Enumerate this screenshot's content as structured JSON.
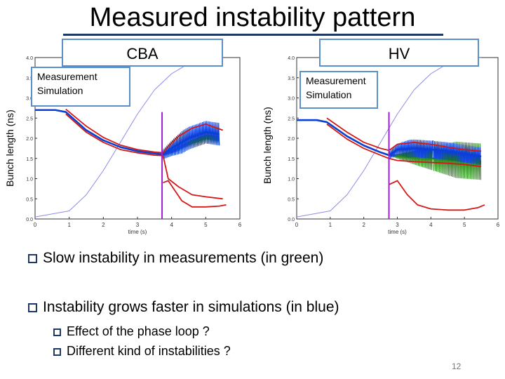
{
  "slide": {
    "title": "Measured instability pattern",
    "page_number": "12",
    "bullets": [
      "Slow instability in measurements (in green)",
      "Instability grows faster in simulations (in blue)"
    ],
    "sub_bullets": [
      "Effect of the phase loop ?",
      "Different kind of instabilities ?"
    ]
  },
  "colors": {
    "measurement": "#2e8b1e",
    "simulation": "#0b3fd8",
    "envelope": "#d41818",
    "ramp": "#8c8ce6",
    "marker": "#a020d0",
    "box_border": "#5b8fcb"
  },
  "chart_data": [
    {
      "type": "line",
      "panel_label": "CBA",
      "ylabel": "Bunch length (ns)",
      "xlabel": "time (s)",
      "xlim": [
        0,
        6
      ],
      "ylim": [
        0,
        4.0
      ],
      "x_ticks": [
        "0",
        "1",
        "2",
        "3",
        "4",
        "5",
        "6"
      ],
      "y_ticks": [
        "0.0",
        "0.5",
        "1.0",
        "1.5",
        "2.0",
        "2.5",
        "3.0",
        "3.5",
        "4.0"
      ],
      "legend": [
        "Measurement",
        "Simulation"
      ],
      "marker_x": 3.72,
      "series": [
        {
          "name": "Measurement",
          "x": [
            0.0,
            0.6,
            0.9,
            1.5,
            2.0,
            2.5,
            3.0,
            3.5,
            3.75,
            4.0,
            4.5,
            5.0,
            5.4
          ],
          "y": [
            2.7,
            2.7,
            2.65,
            2.2,
            1.95,
            1.78,
            1.68,
            1.62,
            1.6,
            1.65,
            1.85,
            2.0,
            1.95
          ]
        },
        {
          "name": "Simulation",
          "x": [
            0.0,
            0.6,
            0.9,
            1.5,
            2.0,
            2.5,
            3.0,
            3.5,
            3.75,
            4.0,
            4.5,
            5.0,
            5.4
          ],
          "y": [
            2.7,
            2.7,
            2.65,
            2.2,
            1.95,
            1.78,
            1.68,
            1.62,
            1.6,
            1.75,
            2.0,
            2.15,
            2.1
          ]
        },
        {
          "name": "",
          "x": [
            0.9,
            1.5,
            2.0,
            2.5,
            3.0,
            3.5,
            3.75,
            3.9,
            4.2,
            4.6,
            5.0,
            5.5
          ],
          "y": [
            2.72,
            2.3,
            2.02,
            1.83,
            1.72,
            1.66,
            1.64,
            1.8,
            2.05,
            2.25,
            2.35,
            2.2
          ]
        },
        {
          "name": "",
          "x": [
            0.9,
            1.5,
            2.0,
            2.5,
            3.0,
            3.5,
            3.75,
            3.9,
            4.2,
            4.6,
            5.0,
            5.5
          ],
          "y": [
            2.6,
            2.15,
            1.9,
            1.72,
            1.64,
            1.58,
            1.57,
            1.0,
            0.8,
            0.6,
            0.55,
            0.5
          ]
        },
        {
          "name": "",
          "x": [
            3.75,
            3.9,
            4.1,
            4.3,
            4.6,
            5.0,
            5.4,
            5.6
          ],
          "y": [
            0.9,
            0.95,
            0.7,
            0.45,
            0.3,
            0.3,
            0.32,
            0.35
          ]
        },
        {
          "name": "",
          "x": [
            0.0,
            1.0,
            1.5,
            2.0,
            2.5,
            3.0,
            3.5,
            4.0,
            4.5,
            5.0,
            5.5
          ],
          "y": [
            0.05,
            0.2,
            0.6,
            1.2,
            1.9,
            2.6,
            3.2,
            3.6,
            3.85,
            3.95,
            4.0
          ]
        }
      ]
    },
    {
      "type": "line",
      "panel_label": "HV",
      "ylabel": "Bunch length (ns)",
      "xlabel": "time (s)",
      "xlim": [
        0,
        6
      ],
      "ylim": [
        0,
        4.0
      ],
      "x_ticks": [
        "0",
        "1",
        "2",
        "3",
        "4",
        "5",
        "6"
      ],
      "y_ticks": [
        "0.0",
        "0.5",
        "1.0",
        "1.5",
        "2.0",
        "2.5",
        "3.0",
        "3.5",
        "4.0"
      ],
      "legend": [
        "Measurement",
        "Simulation"
      ],
      "marker_x": 2.75,
      "series": [
        {
          "name": "Measurement",
          "x": [
            0.0,
            0.6,
            0.9,
            1.5,
            2.0,
            2.5,
            2.75,
            3.0,
            3.5,
            4.0,
            4.5,
            5.0,
            5.5
          ],
          "y": [
            2.45,
            2.45,
            2.4,
            2.05,
            1.82,
            1.65,
            1.58,
            1.55,
            1.52,
            1.5,
            1.48,
            1.45,
            1.42
          ]
        },
        {
          "name": "Simulation",
          "x": [
            0.0,
            0.6,
            0.9,
            1.5,
            2.0,
            2.5,
            2.75,
            3.0,
            3.5,
            4.0,
            4.5,
            5.0,
            5.5
          ],
          "y": [
            2.45,
            2.45,
            2.4,
            2.05,
            1.82,
            1.65,
            1.58,
            1.72,
            1.75,
            1.72,
            1.68,
            1.62,
            1.55
          ]
        },
        {
          "name": "",
          "x": [
            0.9,
            1.5,
            2.0,
            2.5,
            2.75,
            3.0,
            3.5,
            4.0,
            4.5,
            5.0,
            5.5
          ],
          "y": [
            2.5,
            2.15,
            1.9,
            1.75,
            1.7,
            1.85,
            1.9,
            1.85,
            1.78,
            1.72,
            1.68
          ]
        },
        {
          "name": "",
          "x": [
            0.9,
            1.5,
            2.0,
            2.5,
            2.75,
            3.0,
            3.5,
            4.0,
            4.5,
            5.0,
            5.5
          ],
          "y": [
            2.35,
            1.98,
            1.75,
            1.58,
            1.5,
            1.45,
            1.42,
            1.4,
            1.38,
            1.35,
            1.3
          ]
        },
        {
          "name": "",
          "x": [
            2.75,
            3.0,
            3.3,
            3.6,
            4.0,
            4.5,
            5.0,
            5.4,
            5.6
          ],
          "y": [
            0.85,
            0.95,
            0.6,
            0.35,
            0.25,
            0.22,
            0.22,
            0.28,
            0.35
          ]
        },
        {
          "name": "",
          "x": [
            0.0,
            1.0,
            1.5,
            2.0,
            2.5,
            3.0,
            3.5,
            4.0,
            4.5,
            5.0,
            5.5
          ],
          "y": [
            0.05,
            0.2,
            0.6,
            1.2,
            1.9,
            2.6,
            3.2,
            3.6,
            3.85,
            3.95,
            4.0
          ]
        }
      ]
    }
  ]
}
